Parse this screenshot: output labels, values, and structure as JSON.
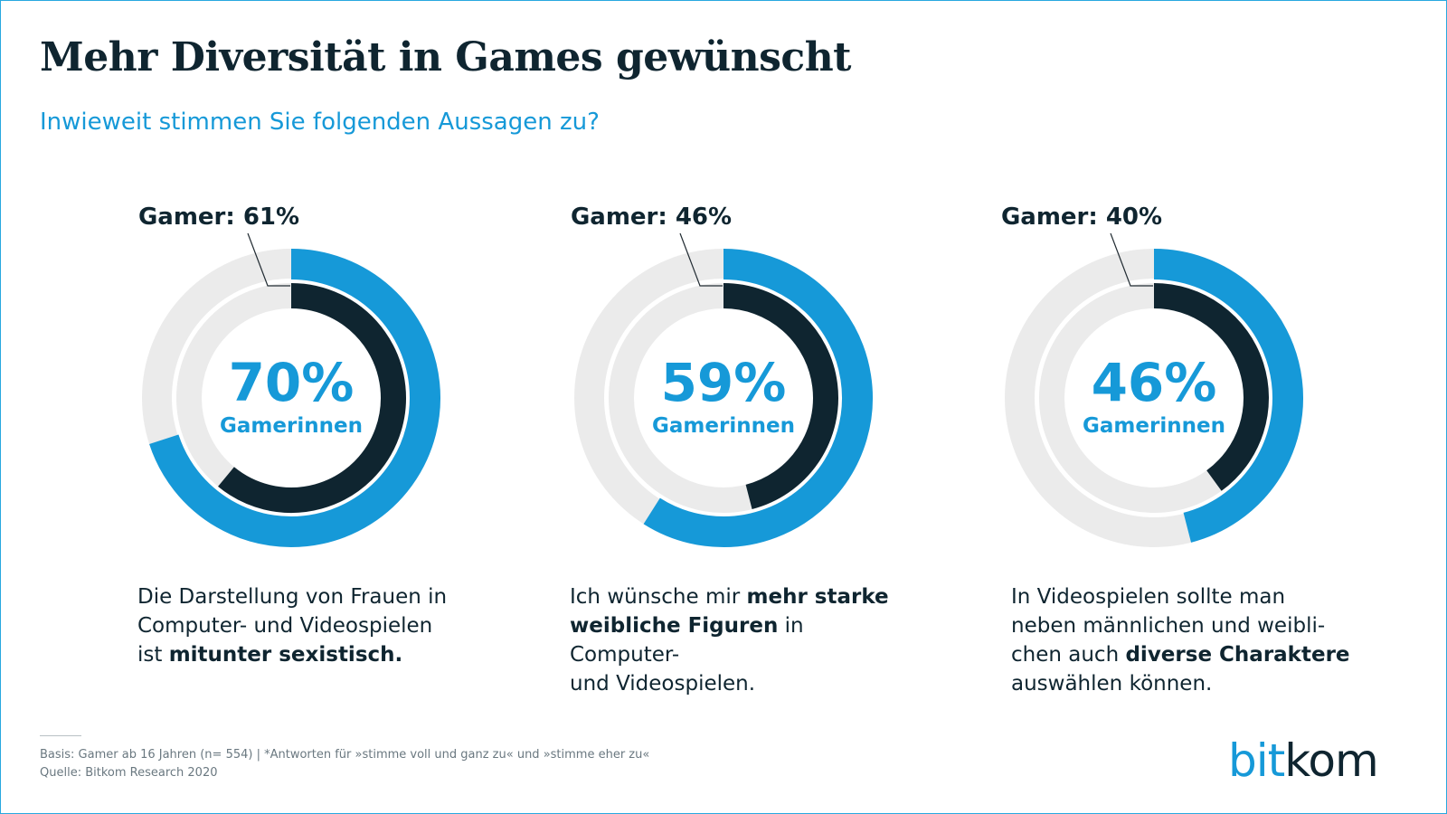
{
  "header": {
    "title": "Mehr Diversität in Games gewünscht",
    "subtitle": "Inwieweit stimmen Sie folgenden Aussagen zu?"
  },
  "colors": {
    "outer_fill": "#1699d8",
    "inner_fill": "#0f2530",
    "track": "#ebebeb",
    "text_dark": "#0f2530",
    "accent": "#1699d8"
  },
  "chart_data": {
    "type": "pie",
    "title": "Mehr Diversität in Games gewünscht",
    "subtitle": "Inwieweit stimmen Sie folgenden Aussagen zu?",
    "series": [
      {
        "name": "Gamerinnen",
        "values": [
          70,
          59,
          46
        ]
      },
      {
        "name": "Gamer",
        "values": [
          61,
          46,
          40
        ]
      }
    ],
    "categories": [
      "Die Darstellung von Frauen in Computer- und Videospielen ist mitunter sexistisch.",
      "Ich wünsche mir mehr starke weibliche Figuren in Computer- und Videospielen.",
      "In Videospielen sollte man neben männlichen und weiblichen auch diverse Charaktere auswählen können."
    ],
    "charts": [
      {
        "female_value": 70,
        "female_label": "70%",
        "female_caption": "Gamerinnen",
        "male_value": 61,
        "male_label": "Gamer: 61%",
        "statement_lines": [
          [
            {
              "t": "Die Darstellung von Frauen in",
              "b": false
            }
          ],
          [
            {
              "t": "Computer- und Videospielen",
              "b": false
            }
          ],
          [
            {
              "t": "ist ",
              "b": false
            },
            {
              "t": "mitunter sexistisch.",
              "b": true
            }
          ]
        ]
      },
      {
        "female_value": 59,
        "female_label": "59%",
        "female_caption": "Gamerinnen",
        "male_value": 46,
        "male_label": "Gamer: 46%",
        "statement_lines": [
          [
            {
              "t": "Ich wünsche mir ",
              "b": false
            },
            {
              "t": "mehr starke",
              "b": true
            }
          ],
          [
            {
              "t": "weibliche Figuren",
              "b": true
            },
            {
              "t": " in Computer-",
              "b": false
            }
          ],
          [
            {
              "t": "und Videospielen.",
              "b": false
            }
          ]
        ]
      },
      {
        "female_value": 46,
        "female_label": "46%",
        "female_caption": "Gamerinnen",
        "male_value": 40,
        "male_label": "Gamer: 40%",
        "statement_lines": [
          [
            {
              "t": "In Videospielen sollte man",
              "b": false
            }
          ],
          [
            {
              "t": "neben männlichen und weibli-",
              "b": false
            }
          ],
          [
            {
              "t": "chen auch ",
              "b": false
            },
            {
              "t": "diverse Charaktere",
              "b": true
            }
          ],
          [
            {
              "t": "auswählen können.",
              "b": false
            }
          ]
        ]
      }
    ]
  },
  "footer": {
    "basis": "Basis: Gamer ab 16 Jahren (n= 554) | *Antworten für »stimme voll und ganz zu« und »stimme eher zu«",
    "source": "Quelle: Bitkom Research 2020"
  },
  "logo": {
    "part1": "bit",
    "part2": "kom"
  }
}
